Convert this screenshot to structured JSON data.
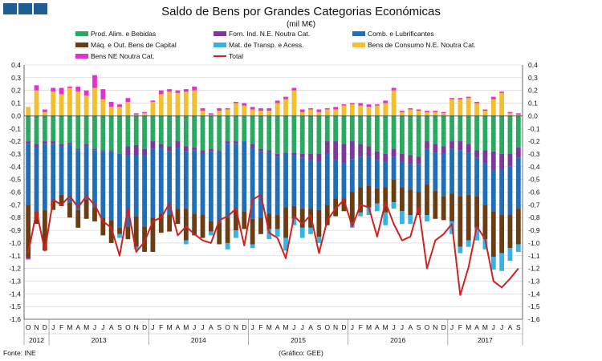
{
  "header": {
    "title": "Saldo de Bens por Grandes Categorias Económicas",
    "subtitle": "(mil M€)"
  },
  "footer": {
    "source": "Fonte: INE",
    "credit": "(Gráfico: GEE)"
  },
  "legend": [
    {
      "name": "Prod. Alim. e Bebidas",
      "color": "#2aa960"
    },
    {
      "name": "Forn. Ind. N.E. Noutra Cat.",
      "color": "#7b3a9a"
    },
    {
      "name": "Comb. e Lubrificantes",
      "color": "#1e6fb8"
    },
    {
      "name": "Máq. e Out. Bens de Capital",
      "color": "#6b3d12"
    },
    {
      "name": "Mat. de Transp. e Acess.",
      "color": "#36b3e6"
    },
    {
      "name": "Bens de Consumo N.E. Noutra Cat.",
      "color": "#f2c02e"
    },
    {
      "name": "Bens NE Noutra Cat.",
      "color": "#e62fd0"
    },
    {
      "name": "Total",
      "color": "#d42020",
      "line": true
    }
  ],
  "chart_data": {
    "type": "bar",
    "stacked": true,
    "title": "Saldo de Bens por Grandes Categorias Económicas",
    "ylabel": "mil M€",
    "ylim": [
      -1.6,
      0.4
    ],
    "yticks": [
      "0,4",
      "0,3",
      "0,2",
      "0,1",
      "0,0",
      "-0,1",
      "-0,2",
      "-0,3",
      "-0,4",
      "-0,5",
      "-0,6",
      "-0,7",
      "-0,8",
      "-0,9",
      "-1,0",
      "-1,1",
      "-1,2",
      "-1,3",
      "-1,4",
      "-1,5",
      "-1,6"
    ],
    "yticks_right": [
      "0,4",
      "0,3",
      "0,2",
      "0,1",
      "0,0",
      "-0,1",
      "-0,2",
      "-0,3",
      "-0,4",
      "-0,5",
      "-0,6",
      "-0,7",
      "-0,8",
      "-0,9",
      "-1,0",
      "-1,1",
      "-1,2",
      "-1,3",
      "-1,4",
      "-1,5",
      "-1,6"
    ],
    "month_labels": [
      "O",
      "N",
      "D",
      "J",
      "F",
      "M",
      "A",
      "M",
      "J",
      "J",
      "A",
      "S",
      "O",
      "N",
      "D",
      "J",
      "F",
      "M",
      "A",
      "M",
      "J",
      "J",
      "A",
      "S",
      "O",
      "N",
      "D",
      "J",
      "F",
      "M",
      "A",
      "M",
      "J",
      "J",
      "A",
      "S",
      "O",
      "N",
      "D",
      "J",
      "F",
      "M",
      "A",
      "M",
      "J",
      "J",
      "A",
      "S",
      "O",
      "N",
      "D",
      "J",
      "F",
      "M",
      "A",
      "M",
      "J",
      "J",
      "A",
      "S"
    ],
    "year_labels": [
      {
        "label": "2012",
        "start": 0,
        "count": 3
      },
      {
        "label": "2013",
        "start": 3,
        "count": 12
      },
      {
        "label": "2014",
        "start": 15,
        "count": 12
      },
      {
        "label": "2015",
        "start": 27,
        "count": 12
      },
      {
        "label": "2016",
        "start": 39,
        "count": 12
      },
      {
        "label": "2017",
        "start": 51,
        "count": 9
      }
    ],
    "series": [
      {
        "name": "Prod. Alim. e Bebidas",
        "color": "#2aa960",
        "values": [
          -0.2,
          -0.22,
          -0.2,
          -0.2,
          -0.22,
          -0.21,
          -0.26,
          -0.22,
          -0.26,
          -0.27,
          -0.27,
          -0.3,
          -0.24,
          -0.23,
          -0.26,
          -0.2,
          -0.22,
          -0.24,
          -0.2,
          -0.24,
          -0.25,
          -0.27,
          -0.26,
          -0.27,
          -0.2,
          -0.2,
          -0.2,
          -0.22,
          -0.26,
          -0.27,
          -0.3,
          -0.29,
          -0.29,
          -0.3,
          -0.3,
          -0.3,
          -0.2,
          -0.2,
          -0.22,
          -0.2,
          -0.22,
          -0.24,
          -0.28,
          -0.3,
          -0.26,
          -0.3,
          -0.31,
          -0.32,
          -0.2,
          -0.22,
          -0.24,
          -0.2,
          -0.2,
          -0.22,
          -0.27,
          -0.27,
          -0.28,
          -0.3,
          -0.3,
          -0.25
        ]
      },
      {
        "name": "Forn. Ind. N.E. Noutra Cat.",
        "color": "#7b3a9a",
        "values": [
          -0.02,
          -0.03,
          -0.02,
          -0.02,
          -0.02,
          -0.01,
          -0.01,
          -0.02,
          -0.01,
          -0.01,
          -0.01,
          0,
          -0.07,
          -0.08,
          -0.05,
          -0.06,
          -0.03,
          -0.04,
          -0.05,
          -0.04,
          -0.02,
          -0.03,
          -0.02,
          -0.01,
          -0.02,
          -0.02,
          0,
          -0.03,
          -0.02,
          -0.02,
          -0.02,
          -0.01,
          -0.02,
          -0.03,
          -0.05,
          -0.06,
          -0.1,
          -0.15,
          -0.15,
          -0.14,
          -0.1,
          -0.08,
          -0.07,
          -0.06,
          -0.06,
          -0.06,
          -0.07,
          -0.06,
          -0.06,
          -0.07,
          -0.06,
          -0.06,
          -0.07,
          -0.07,
          -0.06,
          -0.1,
          -0.15,
          -0.12,
          -0.1,
          -0.08
        ]
      },
      {
        "name": "Comb. e Lubrificantes",
        "color": "#1e6fb8",
        "values": [
          -0.48,
          -0.5,
          -0.52,
          -0.45,
          -0.38,
          -0.46,
          -0.47,
          -0.42,
          -0.45,
          -0.52,
          -0.54,
          -0.58,
          -0.56,
          -0.48,
          -0.56,
          -0.54,
          -0.52,
          -0.5,
          -0.48,
          -0.45,
          -0.5,
          -0.48,
          -0.55,
          -0.56,
          -0.58,
          -0.52,
          -0.55,
          -0.56,
          -0.52,
          -0.48,
          -0.46,
          -0.42,
          -0.4,
          -0.4,
          -0.38,
          -0.38,
          -0.4,
          -0.3,
          -0.28,
          -0.26,
          -0.24,
          -0.23,
          -0.22,
          -0.2,
          -0.18,
          -0.2,
          -0.2,
          -0.22,
          -0.28,
          -0.3,
          -0.33,
          -0.35,
          -0.36,
          -0.33,
          -0.3,
          -0.33,
          -0.32,
          -0.36,
          -0.38,
          -0.4
        ]
      },
      {
        "name": "Máq. e Out. Bens de Capital",
        "color": "#6b3d12",
        "values": [
          -0.42,
          -0.1,
          -0.32,
          -0.07,
          -0.09,
          -0.12,
          -0.14,
          -0.15,
          -0.11,
          -0.14,
          -0.18,
          -0.05,
          -0.1,
          -0.24,
          -0.2,
          -0.27,
          -0.15,
          -0.13,
          -0.12,
          -0.25,
          -0.17,
          -0.18,
          -0.08,
          -0.17,
          -0.2,
          -0.16,
          -0.14,
          -0.2,
          -0.13,
          -0.12,
          -0.11,
          -0.24,
          -0.1,
          -0.15,
          -0.15,
          -0.21,
          -0.16,
          -0.14,
          -0.1,
          -0.24,
          -0.2,
          -0.17,
          -0.12,
          -0.2,
          -0.18,
          -0.19,
          -0.2,
          -0.18,
          -0.24,
          -0.22,
          -0.19,
          -0.22,
          -0.4,
          -0.36,
          -0.25,
          -0.27,
          -0.36,
          -0.3,
          -0.26,
          -0.28
        ]
      },
      {
        "name": "Mat. de Transp. e Acess.",
        "color": "#36b3e6",
        "values": [
          0,
          0,
          0,
          0,
          0,
          0,
          0,
          0,
          0,
          0,
          0,
          -0.03,
          0,
          -0.02,
          0,
          0,
          0,
          0,
          0,
          -0.03,
          0,
          0,
          -0.03,
          0,
          -0.05,
          -0.06,
          0,
          -0.03,
          0,
          -0.08,
          -0.06,
          -0.1,
          -0.05,
          -0.08,
          -0.05,
          -0.05,
          0,
          0,
          0,
          -0.04,
          -0.03,
          -0.06,
          -0.06,
          -0.1,
          -0.05,
          -0.1,
          -0.07,
          0,
          -0.05,
          0,
          0,
          -0.1,
          -0.05,
          -0.05,
          -0.1,
          -0.08,
          -0.1,
          -0.14,
          -0.1,
          -0.06
        ]
      },
      {
        "name": "Bens de Consumo N.E. Noutra Cat.",
        "color": "#f2c02e",
        "values": [
          0.07,
          0.2,
          0.03,
          0.19,
          0.17,
          0.22,
          0.19,
          0.16,
          0.22,
          0.13,
          0.07,
          0.07,
          0.11,
          0.01,
          0.02,
          0.11,
          0.17,
          0.19,
          0.18,
          0.19,
          0.2,
          0.04,
          0.01,
          0.04,
          0.05,
          0.1,
          0.08,
          0.05,
          0.04,
          0.04,
          0.1,
          0.13,
          0.2,
          0.03,
          0.05,
          0.03,
          0.05,
          0.05,
          0.08,
          0.09,
          0.08,
          0.07,
          0.08,
          0.1,
          0.2,
          0.03,
          0.05,
          0.04,
          0.03,
          0.03,
          0.02,
          0.13,
          0.13,
          0.14,
          0.1,
          0.04,
          0.13,
          0.18,
          0.02,
          0.01
        ]
      },
      {
        "name": "Bens NE Noutra Cat.",
        "color": "#e62fd0",
        "values": [
          -0.01,
          0.04,
          0.02,
          0.03,
          0.05,
          0.01,
          0.04,
          0.04,
          0.1,
          0.08,
          0.04,
          0.02,
          0.03,
          0.01,
          0.01,
          0.01,
          0.03,
          0.02,
          0.02,
          0.02,
          0.03,
          0.02,
          0.01,
          0.02,
          0.01,
          0.01,
          0.02,
          0.02,
          0.02,
          0.02,
          0.02,
          0.02,
          0.02,
          0.02,
          0.01,
          0.02,
          0.01,
          0.02,
          0.01,
          0.01,
          0.02,
          0.02,
          0.01,
          0.02,
          0.02,
          0.01,
          0.01,
          0.01,
          0.01,
          0.01,
          0.01,
          0.01,
          0.01,
          0.01,
          0.01,
          0.01,
          0.02,
          0.01,
          0.01,
          0.01
        ]
      }
    ],
    "total": {
      "name": "Total",
      "color": "#d42020",
      "values": [
        -1.08,
        -0.75,
        -1.06,
        -0.66,
        -0.7,
        -0.63,
        -0.72,
        -0.63,
        -0.7,
        -0.83,
        -0.88,
        -1.1,
        -0.73,
        -1.07,
        -0.99,
        -0.83,
        -0.8,
        -0.69,
        -0.94,
        -0.87,
        -0.93,
        -0.98,
        -1.0,
        -0.82,
        -0.79,
        -0.73,
        -1.02,
        -0.66,
        -0.62,
        -0.92,
        -0.96,
        -1.12,
        -0.79,
        -0.85,
        -0.78,
        -1.08,
        -0.82,
        -0.73,
        -0.66,
        -0.87,
        -0.7,
        -0.72,
        -0.95,
        -0.68,
        -0.85,
        -0.98,
        -0.95,
        -0.72,
        -1.2,
        -0.98,
        -0.93,
        -0.85,
        -1.41,
        -1.19,
        -0.87,
        -0.97,
        -1.3,
        -1.35,
        -1.28,
        -1.2
      ]
    }
  }
}
